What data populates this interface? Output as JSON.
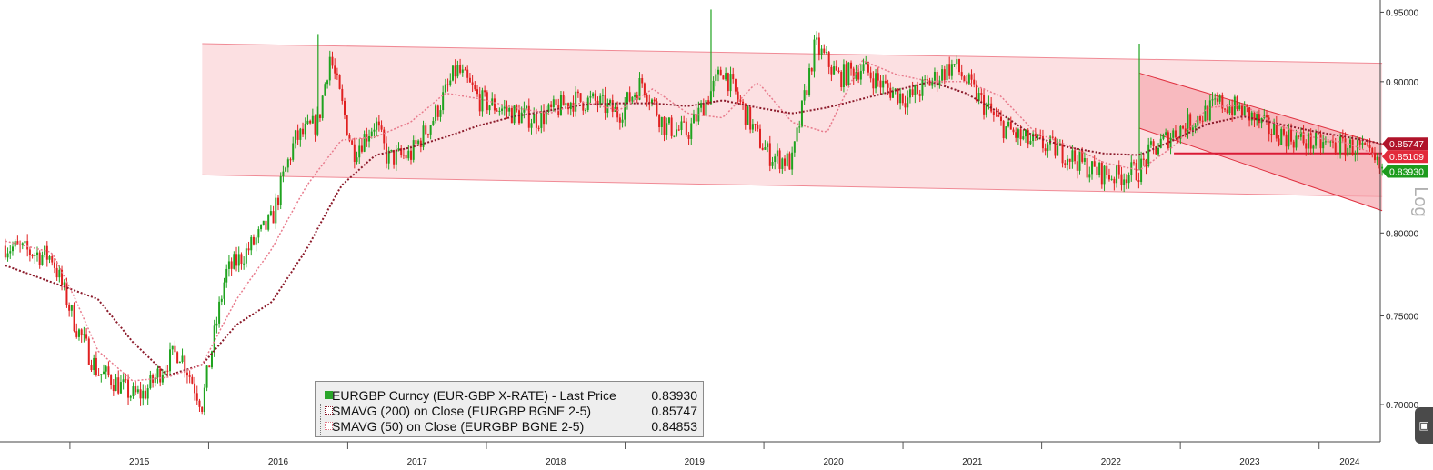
{
  "chart_data": {
    "type": "candlestick",
    "title": "",
    "scale": "log",
    "scale_label": "Log",
    "ylim": [
      0.68,
      0.955
    ],
    "y_ticks": [
      "0.95000",
      "0.90000",
      "0.85000",
      "0.80000",
      "0.75000",
      "0.70000"
    ],
    "x_year_labels": [
      "2015",
      "2016",
      "2017",
      "2018",
      "2019",
      "2020",
      "2021",
      "2022",
      "2023",
      "2024"
    ],
    "x_range": [
      "2014-07-01",
      "2024-06-10"
    ],
    "grid": false,
    "legend_position": "bottom-center",
    "series": [
      {
        "name": "EURGBP Curncy (EUR-GBP X-RATE) - Last Price",
        "last_value": "0.83930",
        "style": "candles",
        "colors": {
          "up": "#1fa31f",
          "down": "#e02020"
        },
        "x": [
          "2014-07",
          "2014-11",
          "2015-01",
          "2015-03",
          "2015-04",
          "2015-06",
          "2015-07",
          "2015-09",
          "2015-10",
          "2015-12",
          "2016-02",
          "2016-04",
          "2016-06",
          "2016-07",
          "2016-08",
          "2016-10",
          "2016-11",
          "2017-01",
          "2017-03",
          "2017-04",
          "2017-06",
          "2017-08",
          "2017-10",
          "2017-12",
          "2018-03",
          "2018-05",
          "2018-08",
          "2018-10",
          "2018-12",
          "2019-02",
          "2019-04",
          "2019-06",
          "2019-08",
          "2019-09",
          "2019-10",
          "2019-12",
          "2020-01",
          "2020-03",
          "2020-05",
          "2020-07",
          "2020-09",
          "2020-11",
          "2021-01",
          "2021-03",
          "2021-05",
          "2021-07",
          "2021-09",
          "2021-11",
          "2022-01",
          "2022-03",
          "2022-05",
          "2022-07",
          "2022-09",
          "2022-10",
          "2022-12",
          "2023-02",
          "2023-04",
          "2023-06",
          "2023-08",
          "2023-10",
          "2023-12",
          "2024-02",
          "2024-04",
          "2024-06"
        ],
        "close": [
          0.792,
          0.785,
          0.745,
          0.718,
          0.715,
          0.705,
          0.706,
          0.724,
          0.73,
          0.7,
          0.775,
          0.79,
          0.808,
          0.835,
          0.86,
          0.872,
          0.918,
          0.852,
          0.872,
          0.848,
          0.85,
          0.875,
          0.909,
          0.887,
          0.878,
          0.874,
          0.887,
          0.886,
          0.878,
          0.9,
          0.869,
          0.865,
          0.893,
          0.909,
          0.893,
          0.862,
          0.85,
          0.845,
          0.926,
          0.903,
          0.91,
          0.896,
          0.888,
          0.9,
          0.912,
          0.89,
          0.87,
          0.86,
          0.856,
          0.85,
          0.84,
          0.836,
          0.84,
          0.852,
          0.865,
          0.875,
          0.885,
          0.88,
          0.868,
          0.862,
          0.858,
          0.856,
          0.855,
          0.8393
        ],
        "high_spikes": [
          {
            "x": "2016-10",
            "value": 0.934
          },
          {
            "x": "2019-08",
            "value": 0.952
          },
          {
            "x": "2022-09",
            "value": 0.927
          }
        ]
      },
      {
        "name": "SMAVG (200)  on Close (EURGBP BGNE 2-5)",
        "last_value": "0.85747",
        "style": "dotted",
        "color": "#8b1a2a",
        "x": [
          "2014-07",
          "2015-03",
          "2015-06",
          "2015-09",
          "2015-12",
          "2016-03",
          "2016-06",
          "2016-09",
          "2016-12",
          "2017-03",
          "2017-06",
          "2017-09",
          "2017-12",
          "2018-03",
          "2018-06",
          "2018-09",
          "2018-12",
          "2019-03",
          "2019-06",
          "2019-09",
          "2019-12",
          "2020-03",
          "2020-06",
          "2020-09",
          "2020-12",
          "2021-03",
          "2021-06",
          "2021-09",
          "2021-12",
          "2022-03",
          "2022-06",
          "2022-09",
          "2022-12",
          "2023-03",
          "2023-06",
          "2023-09",
          "2023-12",
          "2024-03",
          "2024-06"
        ],
        "values": [
          0.78,
          0.76,
          0.735,
          0.716,
          0.722,
          0.745,
          0.758,
          0.79,
          0.83,
          0.85,
          0.855,
          0.862,
          0.87,
          0.876,
          0.88,
          0.884,
          0.885,
          0.885,
          0.883,
          0.887,
          0.882,
          0.878,
          0.882,
          0.888,
          0.894,
          0.9,
          0.892,
          0.878,
          0.862,
          0.855,
          0.851,
          0.85,
          0.86,
          0.871,
          0.876,
          0.871,
          0.866,
          0.862,
          0.8575
        ]
      },
      {
        "name": "SMAVG (50)  on Close (EURGBP BGNE 2-5)",
        "last_value": "0.84853",
        "style": "dotted",
        "color": "#e87b8c",
        "x": [
          "2014-07",
          "2014-11",
          "2015-01",
          "2015-03",
          "2015-06",
          "2015-09",
          "2015-12",
          "2016-03",
          "2016-06",
          "2016-09",
          "2016-12",
          "2017-03",
          "2017-06",
          "2017-09",
          "2017-12",
          "2018-03",
          "2018-06",
          "2018-09",
          "2018-12",
          "2019-03",
          "2019-06",
          "2019-09",
          "2019-12",
          "2020-03",
          "2020-06",
          "2020-09",
          "2020-12",
          "2021-03",
          "2021-06",
          "2021-09",
          "2021-12",
          "2022-03",
          "2022-06",
          "2022-09",
          "2022-12",
          "2023-03",
          "2023-06",
          "2023-09",
          "2023-12",
          "2024-03",
          "2024-06"
        ],
        "values": [
          0.795,
          0.788,
          0.76,
          0.73,
          0.713,
          0.715,
          0.722,
          0.76,
          0.79,
          0.83,
          0.86,
          0.862,
          0.872,
          0.892,
          0.888,
          0.882,
          0.878,
          0.886,
          0.88,
          0.895,
          0.878,
          0.875,
          0.9,
          0.872,
          0.865,
          0.915,
          0.905,
          0.9,
          0.9,
          0.89,
          0.865,
          0.856,
          0.845,
          0.84,
          0.856,
          0.882,
          0.884,
          0.87,
          0.862,
          0.858,
          0.8485
        ]
      }
    ],
    "annotations": {
      "long_channel": {
        "upper": [
          [
            "2015-12",
            0.927
          ],
          [
            "2024-06",
            0.913
          ]
        ],
        "lower": [
          [
            "2015-12",
            0.837
          ],
          [
            "2024-06",
            0.823
          ]
        ]
      },
      "descending_channel": {
        "upper": [
          [
            "2022-09",
            0.906
          ],
          [
            "2024-06",
            0.857
          ]
        ],
        "lower": [
          [
            "2022-09",
            0.868
          ],
          [
            "2024-06",
            0.814
          ]
        ]
      },
      "horizontal_line": {
        "from": "2022-12",
        "to": "2024-06",
        "value": 0.8511
      }
    },
    "price_tags": [
      {
        "label": "0.85747",
        "value": 0.8575,
        "color": "#b0132a"
      },
      {
        "label": "0.85109",
        "value": 0.8511,
        "color": "#e22a3a"
      },
      {
        "label": "0.83930",
        "value": 0.8393,
        "color": "#1d9b1d"
      }
    ]
  }
}
